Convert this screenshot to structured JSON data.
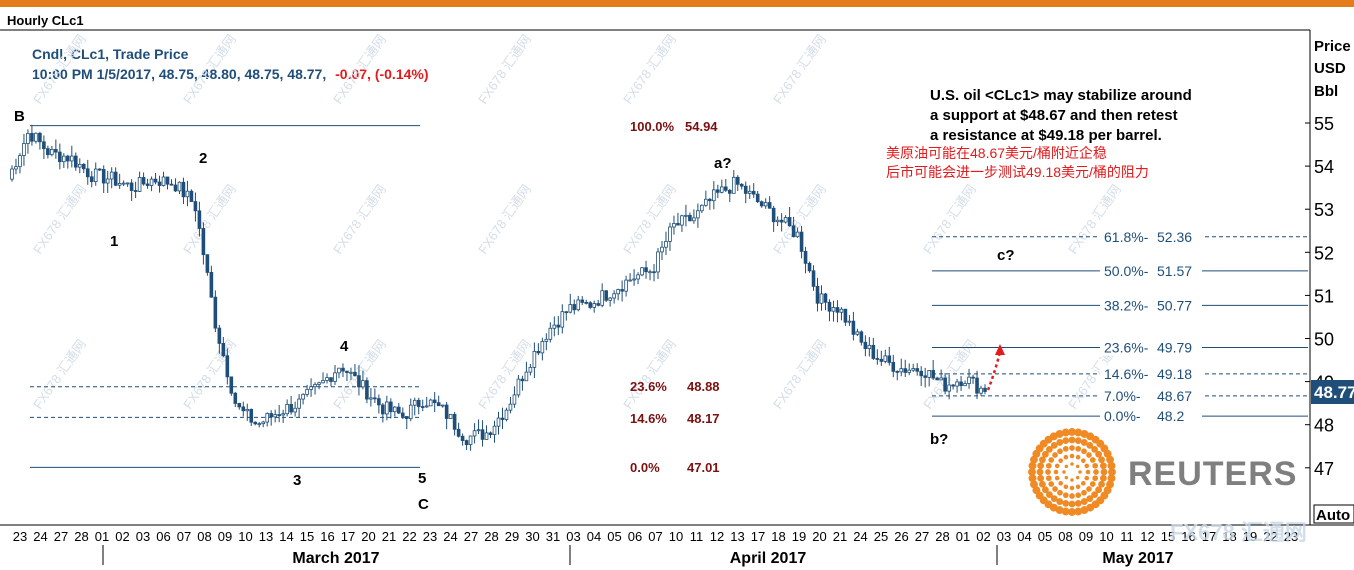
{
  "window": {
    "title": "Hourly CLc1"
  },
  "colors": {
    "accent": "#E47B1C",
    "candle": "#1F4E79",
    "ref_line": "#1F4E79",
    "red_text": "#E41A1C",
    "dark_red": "#7B1010",
    "price_tag_bg": "#1F4E79",
    "reuters_orange": "#F08A24",
    "reuters_gray": "#7F7F7F"
  },
  "header": {
    "line1": "Cndl, CLc1, Trade Price",
    "line2_prefix": "10:00 PM 1/5/2017, 48.75, 48.80, 48.75, 48.77,",
    "line2_change": "-0.07, (-0.14%)"
  },
  "annotation": {
    "en": [
      "U.S. oil <CLc1> may stabilize around",
      "a support at $48.67 and then retest",
      "a resistance at $49.18 per barrel."
    ],
    "zh": [
      "美原油可能在48.67美元/桶附近企稳",
      "后市可能会进一步测试49.18美元/桶的阻力"
    ]
  },
  "right_axis": {
    "unit_lines": [
      "Price",
      "USD",
      "Bbl"
    ],
    "auto_label": "Auto",
    "current_price_tag": "48.77"
  },
  "watermark": "FX678 汇通网",
  "logo_text": "REUTERS",
  "chart_data": {
    "type": "candlestick",
    "title": "Hourly CLc1",
    "series_name": "Cndl, CLc1, Trade Price",
    "ylabel": "Price USD Bbl",
    "ylim": [
      46.2,
      55.9
    ],
    "yticks": [
      47,
      48,
      49,
      50,
      51,
      52,
      53,
      54,
      55
    ],
    "ytick_labels": [
      "47",
      "48",
      "49",
      "50",
      "51",
      "52",
      "53",
      "54",
      "55"
    ],
    "x_day_labels": [
      "23",
      "24",
      "27",
      "28",
      "01",
      "02",
      "03",
      "06",
      "07",
      "08",
      "09",
      "10",
      "13",
      "14",
      "15",
      "16",
      "17",
      "20",
      "21",
      "22",
      "23",
      "24",
      "27",
      "28",
      "29",
      "30",
      "31",
      "03",
      "04",
      "05",
      "06",
      "07",
      "10",
      "11",
      "12",
      "13",
      "17",
      "18",
      "19",
      "20",
      "21",
      "24",
      "25",
      "26",
      "27",
      "28",
      "01",
      "02",
      "03",
      "04",
      "05",
      "08",
      "09",
      "10",
      "11",
      "12",
      "15",
      "16",
      "17",
      "18",
      "19",
      "22",
      "23"
    ],
    "month_labels": [
      "March 2017",
      "April 2017",
      "May 2017"
    ],
    "last_price": 48.77,
    "approx_path": [
      [
        0,
        53.7
      ],
      [
        1,
        54.8
      ],
      [
        2,
        54.3
      ],
      [
        3,
        54.2
      ],
      [
        4,
        53.8
      ],
      [
        5,
        53.7
      ],
      [
        6,
        53.5
      ],
      [
        7,
        53.7
      ],
      [
        8,
        53.6
      ],
      [
        9,
        53.1
      ],
      [
        10,
        50.3
      ],
      [
        11,
        48.4
      ],
      [
        12,
        48.0
      ],
      [
        13,
        48.3
      ],
      [
        14,
        48.5
      ],
      [
        15,
        48.9
      ],
      [
        16,
        49.4
      ],
      [
        17,
        48.9
      ],
      [
        18,
        48.4
      ],
      [
        19,
        48.2
      ],
      [
        20,
        48.6
      ],
      [
        21,
        48.3
      ],
      [
        22,
        47.7
      ],
      [
        23,
        47.8
      ],
      [
        24,
        48.4
      ],
      [
        25,
        49.4
      ],
      [
        26,
        50.2
      ],
      [
        27,
        50.7
      ],
      [
        28,
        50.8
      ],
      [
        29,
        51.1
      ],
      [
        30,
        51.4
      ],
      [
        31,
        51.6
      ],
      [
        32,
        52.6
      ],
      [
        33,
        52.8
      ],
      [
        34,
        53.3
      ],
      [
        35,
        53.6
      ],
      [
        36,
        53.2
      ],
      [
        37,
        52.8
      ],
      [
        38,
        52.4
      ],
      [
        39,
        50.9
      ],
      [
        40,
        50.7
      ],
      [
        41,
        49.9
      ],
      [
        42,
        49.5
      ],
      [
        43,
        49.3
      ],
      [
        44,
        49.3
      ],
      [
        45,
        48.9
      ],
      [
        46,
        49.1
      ],
      [
        47,
        48.77
      ]
    ],
    "wave_labels": [
      "B",
      "1",
      "2",
      "3",
      "4",
      "5",
      "C",
      "a?",
      "b?",
      "c?"
    ],
    "retracement_left": [
      {
        "label": "100.0%",
        "value": "54.94"
      },
      {
        "label": "23.6%",
        "value": "48.88"
      },
      {
        "label": "14.6%",
        "value": "48.17"
      },
      {
        "label": "0.0%",
        "value": "47.01"
      }
    ],
    "retracement_right": [
      {
        "label": "61.8%",
        "value": "52.36"
      },
      {
        "label": "50.0%",
        "value": "51.57"
      },
      {
        "label": "38.2%",
        "value": "50.77"
      },
      {
        "label": "23.6%",
        "value": "49.79"
      },
      {
        "label": "14.6%",
        "value": "49.18"
      },
      {
        "label": "7.0%",
        "value": "48.67"
      },
      {
        "label": "0.0%",
        "value": "48.2"
      }
    ]
  }
}
